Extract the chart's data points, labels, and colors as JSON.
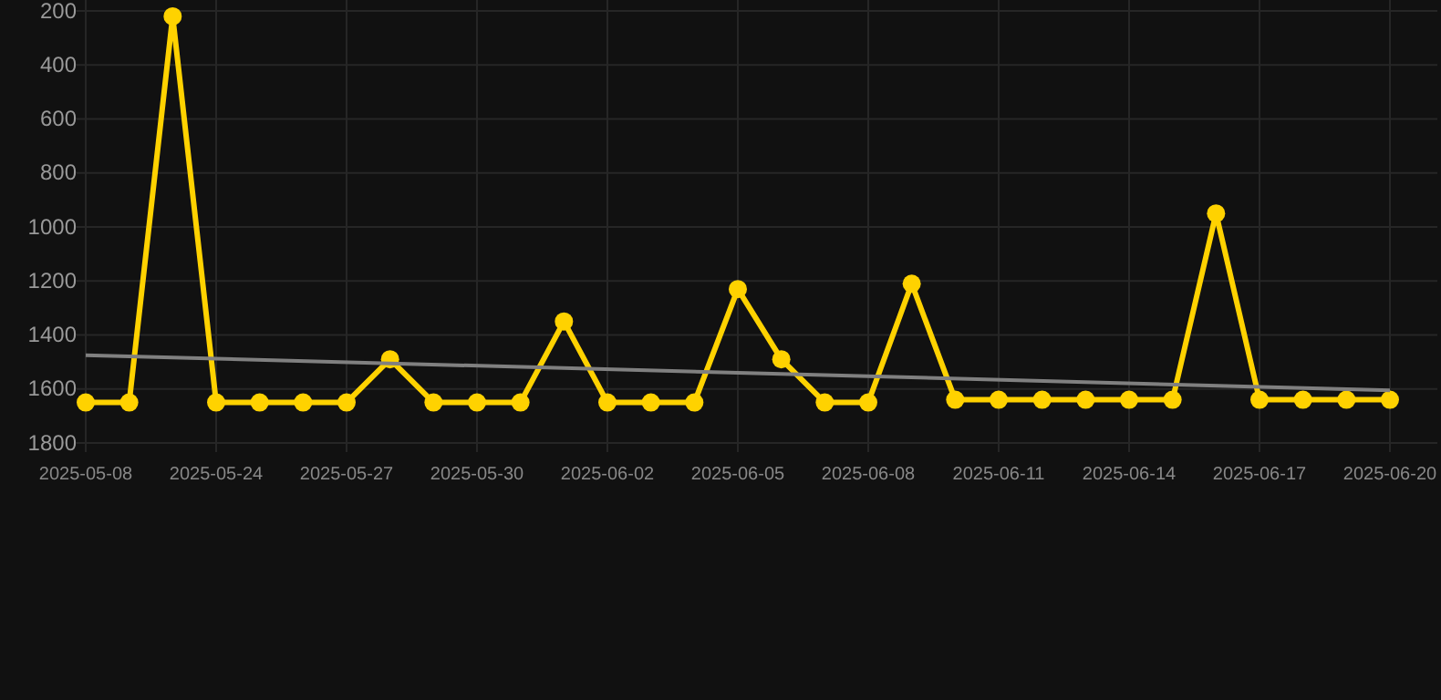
{
  "chart_data": {
    "type": "line",
    "categories": [
      "2025-05-08",
      null,
      null,
      "2025-05-24",
      null,
      null,
      "2025-05-27",
      null,
      null,
      "2025-05-30",
      null,
      null,
      "2025-06-02",
      null,
      null,
      "2025-06-05",
      null,
      null,
      "2025-06-08",
      null,
      null,
      "2025-06-11",
      null,
      null,
      "2025-06-14",
      null,
      null,
      "2025-06-17",
      null,
      null,
      "2025-06-20"
    ],
    "series": [
      {
        "color": "#ffd200",
        "marker": "circle",
        "values": [
          1650,
          1650,
          220,
          1650,
          1650,
          1650,
          1650,
          1490,
          1650,
          1650,
          1650,
          1350,
          1650,
          1650,
          1650,
          1230,
          1490,
          1650,
          1650,
          1210,
          1640,
          1640,
          1640,
          1640,
          1640,
          1640,
          950,
          1640,
          1640,
          1640,
          1640
        ]
      },
      {
        "color": "#808080",
        "marker": "none",
        "values": [
          1475,
          null,
          null,
          null,
          null,
          null,
          null,
          null,
          null,
          null,
          null,
          null,
          null,
          null,
          null,
          null,
          null,
          null,
          null,
          null,
          null,
          null,
          null,
          null,
          null,
          null,
          null,
          null,
          null,
          null,
          1605
        ]
      }
    ],
    "ylim": [
      1800,
      200
    ],
    "yticks": [
      200,
      400,
      600,
      800,
      1000,
      1200,
      1400,
      1600,
      1800
    ],
    "grid": true
  }
}
